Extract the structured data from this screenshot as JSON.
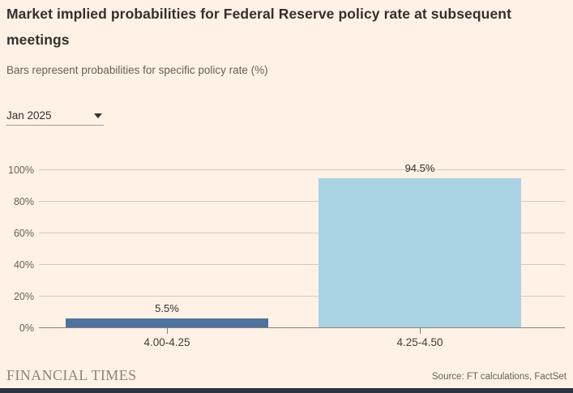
{
  "header": {
    "title": "Market implied probabilities for Federal Reserve policy rate at subsequent meetings",
    "subtitle": "Bars represent probabilities for specific policy rate (%)"
  },
  "controls": {
    "meeting_dropdown": {
      "value": "Jan 2025",
      "icon": "chevron-down-icon"
    }
  },
  "chart_data": {
    "type": "bar",
    "categories": [
      "4.00-4.25",
      "4.25-4.50"
    ],
    "values": [
      5.5,
      94.5
    ],
    "value_labels": [
      "5.5%",
      "94.5%"
    ],
    "bar_colors": [
      "#4d739e",
      "#a9d3e3"
    ],
    "title": "Market implied probabilities for Federal Reserve policy rate at subsequent meetings",
    "xlabel": "",
    "ylabel": "",
    "ylim": [
      0,
      100
    ],
    "ytick_step": 20,
    "ytick_labels": [
      "0%",
      "20%",
      "40%",
      "60%",
      "80%",
      "100%"
    ],
    "grid": true,
    "legend": false
  },
  "footer": {
    "brand": "FINANCIAL TIMES",
    "source": "Source: FT calculations, FactSet"
  },
  "colors": {
    "background": "#fff1e5",
    "bar_dark": "#4d739e",
    "bar_light": "#a9d3e3",
    "gridline": "#d3c9be",
    "axis_line": "#8a827a",
    "text_primary": "#33302e",
    "text_secondary": "#66605b",
    "brand_text": "#8d857a",
    "bottom_bar": "#2b3340"
  }
}
